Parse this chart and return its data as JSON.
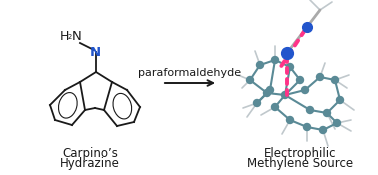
{
  "background_color": "#ffffff",
  "label_left_line1": "Carpino’s",
  "label_left_line2": "Hydrazine",
  "label_right_line1": "Electrophilic",
  "label_right_line2": "Methylene Source",
  "arrow_label": "paraformaldehyde",
  "label_fontsize": 8.5,
  "arrow_label_fontsize": 8,
  "N_color": "#2255cc",
  "atom_color": "#5a8a96",
  "bond_color": "#5a8a96",
  "dashed_color": "#ff3388",
  "blue_dot_color": "#2255cc",
  "line_color": "#1a1a1a",
  "H_bond_color": "#c0c8cc",
  "figsize": [
    3.78,
    1.75
  ],
  "dpi": 100
}
